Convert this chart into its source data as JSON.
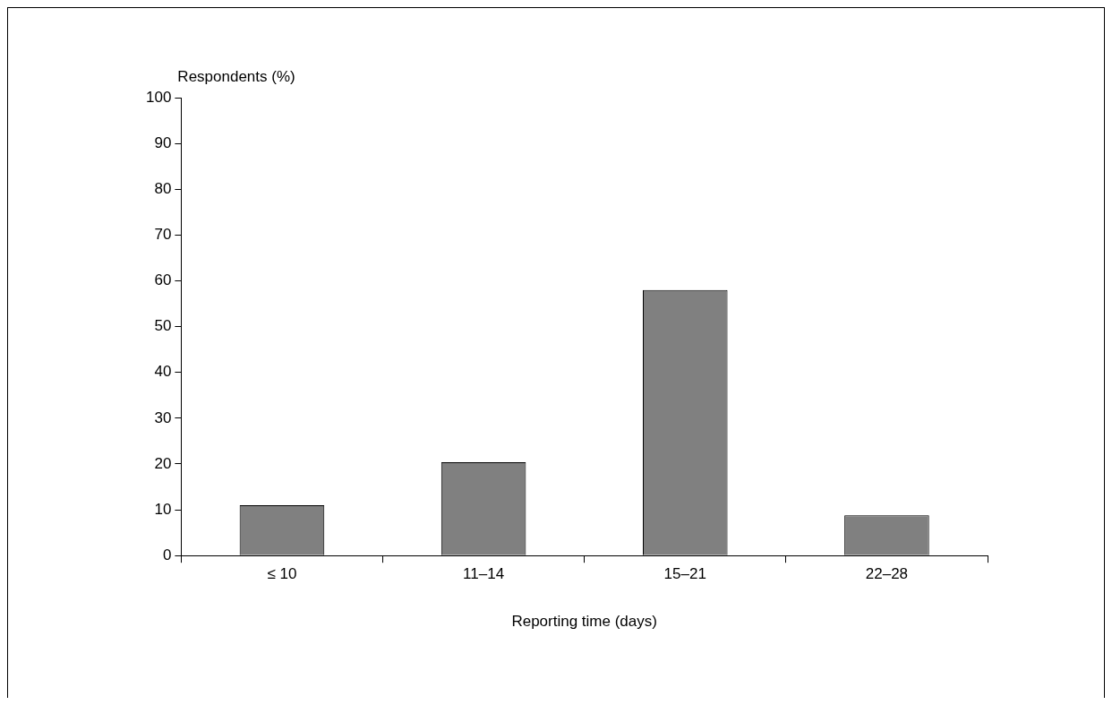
{
  "chart_data": {
    "type": "bar",
    "xlabel": "Reporting time (days)",
    "ylabel": "Respondents (%)",
    "categories": [
      "≤ 10",
      "11–14",
      "15–21",
      "22–28"
    ],
    "values": [
      11,
      20.4,
      58,
      8.8
    ],
    "color": "#808080",
    "ylim": [
      0,
      100
    ],
    "yticks": [
      0,
      10,
      20,
      30,
      40,
      50,
      60,
      70,
      80,
      90,
      100
    ],
    "grid": false,
    "legend": false
  }
}
